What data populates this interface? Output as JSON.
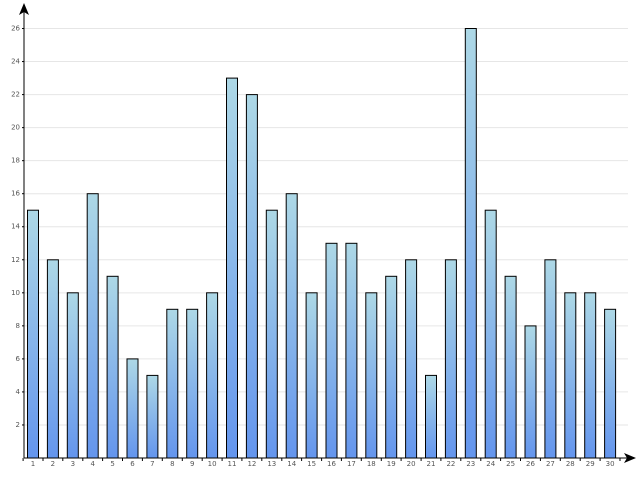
{
  "chart_data": {
    "type": "bar",
    "categories": [
      "1",
      "2",
      "3",
      "4",
      "5",
      "6",
      "7",
      "8",
      "9",
      "10",
      "11",
      "12",
      "13",
      "14",
      "15",
      "16",
      "17",
      "18",
      "19",
      "20",
      "21",
      "22",
      "23",
      "24",
      "25",
      "26",
      "27",
      "28",
      "29",
      "30"
    ],
    "values": [
      15,
      12,
      10,
      16,
      11,
      6,
      5,
      9,
      9,
      10,
      23,
      22,
      15,
      16,
      10,
      13,
      13,
      10,
      11,
      12,
      5,
      12,
      26,
      15,
      11,
      8,
      12,
      10,
      10,
      9
    ],
    "y_ticks": [
      "2",
      "4",
      "6",
      "8",
      "10",
      "12",
      "14",
      "16",
      "18",
      "20",
      "22",
      "24",
      "26"
    ],
    "ylim": [
      0,
      27
    ],
    "title": "",
    "xlabel": "",
    "ylabel": "",
    "grid": true,
    "colors": {
      "bar_top": "#add8e6",
      "bar_bottom": "#6495ed",
      "grid": "#e6e6e6",
      "axis": "#000000"
    }
  }
}
